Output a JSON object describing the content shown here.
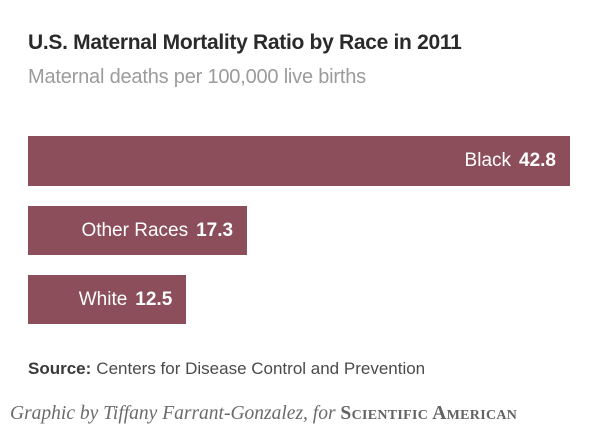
{
  "chart": {
    "title": "U.S. Maternal Mortality Ratio by Race in 2011",
    "subtitle": "Maternal deaths per 100,000 live births",
    "source_label": "Source:",
    "source_text": "Centers for Disease Control and Prevention",
    "credit_text": "Graphic by Tiffany Farrant-Gonzalez, for ",
    "credit_brand": "Scientific American"
  },
  "chart_data": {
    "type": "bar",
    "orientation": "horizontal",
    "title": "U.S. Maternal Mortality Ratio by Race in 2011",
    "subtitle": "Maternal deaths per 100,000 live births",
    "categories": [
      "Black",
      "Other Races",
      "White"
    ],
    "values": [
      42.8,
      17.3,
      12.5
    ],
    "xlabel": "",
    "ylabel": "",
    "xlim": [
      0,
      42.8
    ],
    "grid": false,
    "legend": false,
    "label_position": "inside-end",
    "bar_color": "#8c4e5a",
    "label_color": "#ffffff"
  }
}
